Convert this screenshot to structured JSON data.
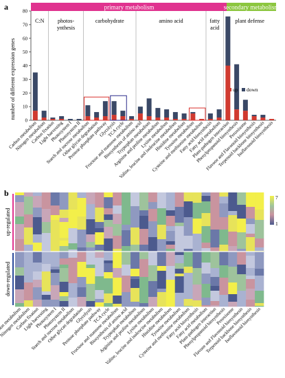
{
  "panel_a": {
    "label": "a",
    "banner_primary": "primary metabolism",
    "banner_secondary": "secondary metabolism",
    "groups": [
      {
        "label_lines": [
          "C:N"
        ]
      },
      {
        "label_lines": [
          "photos-",
          "ynthesis"
        ]
      },
      {
        "label_lines": [
          "carbohydrate"
        ]
      },
      {
        "label_lines": [
          "amino acid"
        ]
      },
      {
        "label_lines": [
          "fatty",
          "acid"
        ]
      },
      {
        "label_lines": [
          "plant defense"
        ]
      }
    ],
    "legend": {
      "up": "up",
      "down": "down"
    },
    "colors": {
      "up": "#d03a30",
      "down": "#3a4866",
      "primary": "#e0338f",
      "secondary": "#8cc63f",
      "highlight_red": "#d9302c",
      "highlight_blue": "#2a2a8a"
    }
  },
  "panel_b": {
    "label": "b",
    "row_labels": [
      "up-regulated",
      "down-regulated"
    ],
    "scale_max": "7",
    "scale_min": "1"
  },
  "chart_data": [
    {
      "type": "bar",
      "stacked": true,
      "ylabel": "number of different expression genes",
      "ylim": [
        0,
        80
      ],
      "yticks": [
        "0",
        "10",
        "20",
        "30",
        "40",
        "50",
        "60",
        "70",
        "80"
      ],
      "categories": [
        "Carbon metabolism",
        "Nitrogen metabolism",
        "Carbon fixation",
        "Light harvesting",
        "Photosystem I",
        "Photosystem II",
        "Starch and sucrose metabolism",
        "Other glycan degradation",
        "Pentose phosphate pathway",
        "Glycolysis",
        "TCA cycle",
        "Fructose and mannose metabolism",
        "Biosynthesis of amino acid",
        "Tryptophan metabolism",
        "Arginine and proline metabolism",
        "Lysine metabolism",
        "Valine, leucine and isoleucine metabolism",
        "Histidine metabolism",
        "Tyrosine metabolism",
        "Cysteine and methionine metabolism",
        "Fatty acid biosynthesis",
        "Fatty acid metabolism",
        "Plant-pathogen interaction",
        "Phenylpropanoid biosynthesis",
        "Peroxisome",
        "Flavone and Flavonoid biosynthesis",
        "Terpenoid backbone biosynthesis",
        "Isoflavonoid biosynthesis"
      ],
      "series": [
        {
          "name": "up",
          "values": [
            7,
            2,
            1,
            1,
            0,
            0,
            3,
            2,
            3,
            4,
            3,
            1,
            5,
            3,
            2,
            2,
            1,
            1,
            5,
            1,
            1,
            2,
            40,
            8,
            7,
            3,
            2,
            1
          ]
        },
        {
          "name": "down",
          "values": [
            28,
            5,
            1,
            2,
            1,
            1,
            8,
            4,
            11,
            10,
            4,
            2,
            5,
            13,
            7,
            6,
            5,
            4,
            1,
            0,
            4,
            6,
            36,
            33,
            8,
            1,
            2,
            0
          ]
        }
      ],
      "legend_position": "top-right"
    },
    {
      "type": "heatmap",
      "rows": [
        "up-regulated",
        "down-regulated"
      ],
      "columns": [
        "Carbon metabolism",
        "Nitrogen metabolism",
        "Carbon fixation",
        "Light harvesting",
        "Photosystem I",
        "Photosystem II",
        "Starch and sucrose metabolism",
        "Other glycan degradation",
        "Glycolysis",
        "Pentose phosphate pathway",
        "TCA cycle",
        "Fructose and mannose metabolism",
        "Biosynthesis of amino acid",
        "Tryptophan metabolism",
        "Arginine and proline metabolism",
        "Lysine metabolism",
        "Valine, leucine and isoleucine metabolism",
        "Histidine metabolism",
        "Tyrosine metabolism",
        "Cysteine and methionine metabolism",
        "Fatty acid biosynthesis",
        "Fatty acid metabolism",
        "Plant-pathogen interaction",
        "Phenylpropanoid biosynthesis",
        "Peroxisome",
        "Flavone and Flavonoid biosynthesis",
        "Terpenoid backbone biosynthesis",
        "Isoflavonoid biosynthesis"
      ],
      "scale": [
        1,
        7
      ]
    }
  ]
}
